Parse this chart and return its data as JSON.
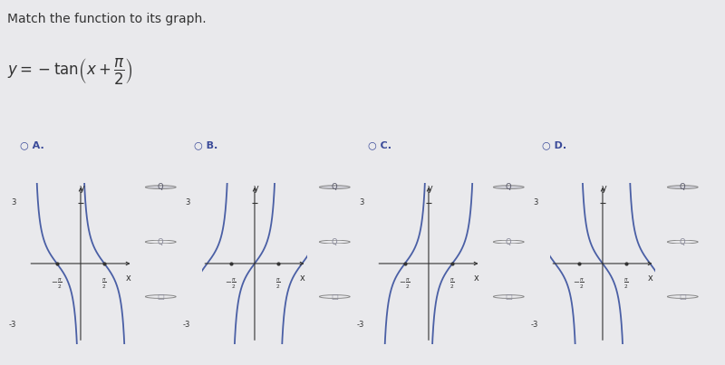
{
  "title": "Match the function to its graph.",
  "bg_color": "#e9e9ec",
  "curve_color": "#4a5fa5",
  "axis_color": "#333333",
  "options": [
    "A.",
    "B.",
    "C.",
    "D."
  ],
  "graph_types": [
    0,
    1,
    2,
    3
  ],
  "ylim": [
    -4,
    4
  ],
  "xlim_factor": 1.1,
  "title_fontsize": 10,
  "eq_fontsize": 12,
  "tick_label_fontsize": 6,
  "curve_lw": 1.3,
  "divider_color": "#bbbbbb"
}
